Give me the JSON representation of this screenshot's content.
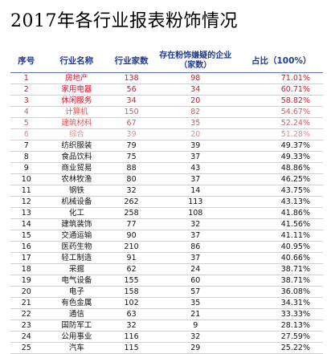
{
  "title": "2017年各行业报表粉饰情况",
  "headers": {
    "rank": "序号",
    "industry": "行业名称",
    "count": "行业家数",
    "fraud_line1": "存在粉饰嫌疑的企业",
    "fraud_line2": "（家数）",
    "ratio": "占比（100%）"
  },
  "colors": {
    "header_text": "#1f3a93",
    "rank_1_3": "#d4152b",
    "rank_4_6": "#e0555a",
    "rank_6": "#e88a8f",
    "others": "#111111"
  },
  "rows": [
    {
      "rank": "1",
      "industry": "房地产",
      "count": "138",
      "fraud": "98",
      "ratio": "71.01%",
      "tone": "red1"
    },
    {
      "rank": "2",
      "industry": "家用电器",
      "count": "56",
      "fraud": "34",
      "ratio": "60.71%",
      "tone": "red1"
    },
    {
      "rank": "3",
      "industry": "休闲服务",
      "count": "34",
      "fraud": "20",
      "ratio": "58.82%",
      "tone": "red1"
    },
    {
      "rank": "4",
      "industry": "计算机",
      "count": "150",
      "fraud": "82",
      "ratio": "54.67%",
      "tone": "red2"
    },
    {
      "rank": "5",
      "industry": "建筑材料",
      "count": "67",
      "fraud": "35",
      "ratio": "52.24%",
      "tone": "red2"
    },
    {
      "rank": "6",
      "industry": "综合",
      "count": "39",
      "fraud": "20",
      "ratio": "51.28%",
      "tone": "red3"
    },
    {
      "rank": "7",
      "industry": "纺织服装",
      "count": "79",
      "fraud": "39",
      "ratio": "49.37%",
      "tone": "black"
    },
    {
      "rank": "8",
      "industry": "食品饮料",
      "count": "75",
      "fraud": "37",
      "ratio": "49.33%",
      "tone": "black"
    },
    {
      "rank": "9",
      "industry": "商业贸易",
      "count": "88",
      "fraud": "43",
      "ratio": "48.86%",
      "tone": "black"
    },
    {
      "rank": "10",
      "industry": "农林牧渔",
      "count": "80",
      "fraud": "37",
      "ratio": "46.25%",
      "tone": "black"
    },
    {
      "rank": "11",
      "industry": "钢铁",
      "count": "32",
      "fraud": "14",
      "ratio": "43.75%",
      "tone": "black"
    },
    {
      "rank": "12",
      "industry": "机械设备",
      "count": "262",
      "fraud": "113",
      "ratio": "43.13%",
      "tone": "black"
    },
    {
      "rank": "13",
      "industry": "化工",
      "count": "258",
      "fraud": "108",
      "ratio": "41.86%",
      "tone": "black"
    },
    {
      "rank": "14",
      "industry": "建筑装饰",
      "count": "77",
      "fraud": "32",
      "ratio": "41.56%",
      "tone": "black"
    },
    {
      "rank": "15",
      "industry": "交通运输",
      "count": "90",
      "fraud": "37",
      "ratio": "41.11%",
      "tone": "black"
    },
    {
      "rank": "16",
      "industry": "医药生物",
      "count": "210",
      "fraud": "86",
      "ratio": "40.95%",
      "tone": "black"
    },
    {
      "rank": "17",
      "industry": "轻工制造",
      "count": "91",
      "fraud": "37",
      "ratio": "40.66%",
      "tone": "black"
    },
    {
      "rank": "18",
      "industry": "采掘",
      "count": "62",
      "fraud": "24",
      "ratio": "38.71%",
      "tone": "black"
    },
    {
      "rank": "19",
      "industry": "电气设备",
      "count": "155",
      "fraud": "60",
      "ratio": "38.71%",
      "tone": "black"
    },
    {
      "rank": "20",
      "industry": "电子",
      "count": "158",
      "fraud": "57",
      "ratio": "36.08%",
      "tone": "black"
    },
    {
      "rank": "21",
      "industry": "有色金属",
      "count": "102",
      "fraud": "35",
      "ratio": "34.31%",
      "tone": "black"
    },
    {
      "rank": "22",
      "industry": "通信",
      "count": "63",
      "fraud": "21",
      "ratio": "33.33%",
      "tone": "black"
    },
    {
      "rank": "23",
      "industry": "国防军工",
      "count": "32",
      "fraud": "9",
      "ratio": "28.13%",
      "tone": "black"
    },
    {
      "rank": "24",
      "industry": "公用事业",
      "count": "116",
      "fraud": "32",
      "ratio": "27.59%",
      "tone": "black"
    },
    {
      "rank": "25",
      "industry": "汽车",
      "count": "115",
      "fraud": "29",
      "ratio": "25.22%",
      "tone": "black"
    }
  ]
}
